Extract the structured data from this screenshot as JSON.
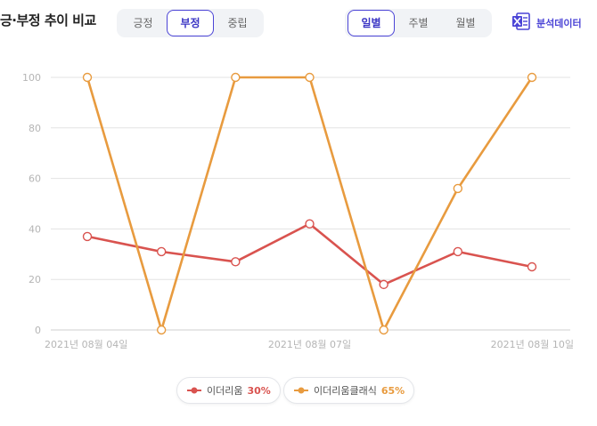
{
  "header": {
    "title": "긍·부정 추이 비교",
    "sentiment_tabs": [
      {
        "label": "긍정",
        "active": false
      },
      {
        "label": "부정",
        "active": true
      },
      {
        "label": "중립",
        "active": false
      }
    ],
    "period_tabs": [
      {
        "label": "일별",
        "active": true
      },
      {
        "label": "주별",
        "active": false
      },
      {
        "label": "월별",
        "active": false
      }
    ],
    "analysis_label": "분석데이터",
    "analysis_icon": "excel-icon"
  },
  "colors": {
    "accent": "#4b44d6",
    "series_1": "#d9534f",
    "series_2": "#e89b3f",
    "grid": "#e3e3e3",
    "axis_text": "#b5b5b5"
  },
  "chart_data": {
    "type": "line",
    "x": [
      "2021-08-04",
      "2021-08-05",
      "2021-08-06",
      "2021-08-07",
      "2021-08-08",
      "2021-08-09",
      "2021-08-10"
    ],
    "x_tick_labels": [
      {
        "label": "2021년 08월 04일",
        "index": 0
      },
      {
        "label": "2021년 08월 07일",
        "index": 3
      },
      {
        "label": "2021년 08월 10일",
        "index": 6
      }
    ],
    "y_ticks": [
      0,
      20,
      40,
      60,
      80,
      100
    ],
    "ylim": [
      0,
      100
    ],
    "grid": true,
    "legend_position": "bottom-center",
    "series": [
      {
        "name": "이더리움",
        "percent": "30%",
        "color": "#d9534f",
        "values": [
          37,
          31,
          27,
          42,
          18,
          31,
          25
        ]
      },
      {
        "name": "이더리움클래식",
        "percent": "65%",
        "color": "#e89b3f",
        "values": [
          100,
          0,
          100,
          100,
          0,
          56,
          100
        ]
      }
    ]
  }
}
